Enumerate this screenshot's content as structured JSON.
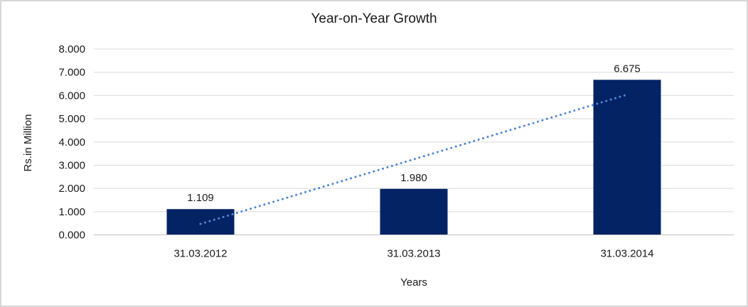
{
  "chart_data": {
    "type": "bar",
    "title": "Year-on-Year Growth",
    "xlabel": "Years",
    "ylabel": "Rs.in Million",
    "categories": [
      "31.03.2012",
      "31.03.2013",
      "31.03.2014"
    ],
    "values": [
      1.109,
      1.98,
      6.675
    ],
    "value_labels": [
      "1.109",
      "1.980",
      "6.675"
    ],
    "ylim": [
      0,
      8
    ],
    "ytick_step": 1,
    "ytick_labels": [
      "0.000",
      "1.000",
      "2.000",
      "3.000",
      "4.000",
      "5.000",
      "6.000",
      "7.000",
      "8.000"
    ],
    "grid": true,
    "legend": "none",
    "trendline": {
      "type": "linear",
      "style": "dotted"
    },
    "colors": {
      "bar": "#042364",
      "trendline_dots": "#4e87d6",
      "gridline": "#d9d9d9",
      "axis_line": "#bfbfbf",
      "text": "#1a1a1a",
      "border": "#d6d6d6",
      "background": "#ffffff"
    }
  }
}
